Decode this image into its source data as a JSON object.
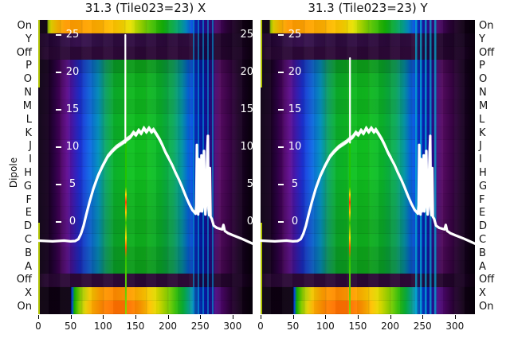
{
  "titles": {
    "left": "31.3 (Tile023=23) X",
    "right": "31.3 (Tile023=23) Y"
  },
  "ylabel": "Dipole",
  "rows": [
    {
      "label": "On",
      "type": "on_top",
      "b": 1
    },
    {
      "label": "Y",
      "type": "y_row",
      "b": 1
    },
    {
      "label": "Off",
      "type": "off_row",
      "b": 1
    },
    {
      "label": "P",
      "type": "main",
      "b": 0.84
    },
    {
      "label": "O",
      "type": "main",
      "b": 0.95
    },
    {
      "label": "N",
      "type": "main",
      "b": 1.0
    },
    {
      "label": "M",
      "type": "main",
      "b": 0.96
    },
    {
      "label": "L",
      "type": "main",
      "b": 1.03
    },
    {
      "label": "K",
      "type": "main",
      "b": 1.0
    },
    {
      "label": "J",
      "type": "main",
      "b": 1.06
    },
    {
      "label": "I",
      "type": "main",
      "b": 1.04
    },
    {
      "label": "H",
      "type": "main",
      "b": 1.06
    },
    {
      "label": "G",
      "type": "main",
      "b": 1.01
    },
    {
      "label": "F",
      "type": "main",
      "b": 0.98
    },
    {
      "label": "E",
      "type": "main",
      "b": 0.96
    },
    {
      "label": "D",
      "type": "main",
      "b": 0.92
    },
    {
      "label": "C",
      "type": "main",
      "b": 0.95
    },
    {
      "label": "B",
      "type": "main",
      "b": 0.88
    },
    {
      "label": "A",
      "type": "main",
      "b": 0.85
    },
    {
      "label": "Off",
      "type": "off_row",
      "b": 1
    },
    {
      "label": "X",
      "type": "x_row",
      "b": 1
    },
    {
      "label": "On",
      "type": "on_bottom",
      "b": 1
    }
  ],
  "chart_data": {
    "type": "heatmap",
    "description": "Dipole power waterfall (rows = dipoles/states, x = frequency channel) with white median bandpass line overlaid",
    "x_ticks": [
      0,
      50,
      100,
      150,
      200,
      250,
      300
    ],
    "x_range": [
      0,
      331
    ],
    "y_ticks": [
      25,
      20,
      15,
      10,
      5,
      0
    ],
    "panels": [
      {
        "title": "31.3 (Tile023=23) X",
        "pol": "X",
        "spike_x": 134.5,
        "spike_top": 25.0,
        "rfi_x": 135,
        "streak": "x_pol",
        "mid_labels": true
      },
      {
        "title": "31.3 (Tile023=23) Y",
        "pol": "Y",
        "spike_x": 138.0,
        "spike_top": 21.9,
        "rfi_x": 138,
        "streak": "y_pol",
        "mid_labels": false
      }
    ],
    "bandpass_line": [
      [
        0,
        -2.5
      ],
      [
        22,
        -2.6
      ],
      [
        40,
        -2.5
      ],
      [
        50,
        -2.6
      ],
      [
        57,
        -2.55
      ],
      [
        62,
        -2.3
      ],
      [
        66,
        -1.6
      ],
      [
        70,
        -0.5
      ],
      [
        74,
        0.9
      ],
      [
        79,
        2.6
      ],
      [
        85,
        4.4
      ],
      [
        92,
        6.1
      ],
      [
        99,
        7.4
      ],
      [
        107,
        8.7
      ],
      [
        114,
        9.4
      ],
      [
        121,
        10.0
      ],
      [
        128,
        10.4
      ],
      [
        133,
        10.7
      ],
      [
        137,
        11.0
      ],
      [
        142,
        11.3
      ],
      [
        147,
        11.9
      ],
      [
        151,
        11.6
      ],
      [
        155,
        12.2
      ],
      [
        159,
        11.8
      ],
      [
        163,
        12.5
      ],
      [
        167,
        12.0
      ],
      [
        171,
        12.5
      ],
      [
        175,
        12.0
      ],
      [
        178,
        12.3
      ],
      [
        181,
        11.9
      ],
      [
        184,
        11.5
      ],
      [
        188,
        10.9
      ],
      [
        192,
        10.2
      ],
      [
        197,
        9.2
      ],
      [
        202,
        8.4
      ],
      [
        207,
        7.6
      ],
      [
        212,
        6.6
      ],
      [
        217,
        5.7
      ],
      [
        222,
        4.7
      ],
      [
        228,
        3.4
      ],
      [
        233,
        2.4
      ],
      [
        238,
        1.6
      ],
      [
        242,
        1.2
      ],
      [
        243,
        1.1
      ],
      [
        244,
        2.2
      ],
      [
        245,
        10.3
      ],
      [
        246,
        2.8
      ],
      [
        247,
        1.0
      ],
      [
        248,
        8.4
      ],
      [
        249,
        1.4
      ],
      [
        250,
        2.3
      ],
      [
        252,
        8.9
      ],
      [
        253,
        1.4
      ],
      [
        254,
        2.1
      ],
      [
        256,
        9.5
      ],
      [
        257,
        3.8
      ],
      [
        258,
        1.0
      ],
      [
        259,
        2.2
      ],
      [
        261,
        9.2
      ],
      [
        262,
        11.5
      ],
      [
        263,
        1.8
      ],
      [
        264,
        0.9
      ],
      [
        265,
        7.2
      ],
      [
        266,
        0.7
      ],
      [
        268,
        0.4
      ],
      [
        271,
        -0.5
      ],
      [
        276,
        -0.8
      ],
      [
        284,
        -1.0
      ],
      [
        286,
        -0.4
      ],
      [
        288,
        -1.2
      ],
      [
        293,
        -1.5
      ],
      [
        301,
        -1.8
      ],
      [
        313,
        -2.2
      ],
      [
        331,
        -2.9
      ]
    ],
    "spike_base_value": 10.6
  },
  "colors": {
    "background": "#ffffff",
    "curve": "#ffffff",
    "tick_text": "#ffffff",
    "axis_text": "#111111",
    "edge_line": "#c3d900",
    "row_gradients": {
      "main": [
        [
          0,
          "#0d0014"
        ],
        [
          0.045,
          "#16001f"
        ],
        [
          0.075,
          "#2a0140"
        ],
        [
          0.105,
          "#47015e"
        ],
        [
          0.135,
          "#5c0b8a"
        ],
        [
          0.165,
          "#3d1bb0"
        ],
        [
          0.2,
          "#1632d2"
        ],
        [
          0.24,
          "#0c62d8"
        ],
        [
          0.28,
          "#0793c0"
        ],
        [
          0.315,
          "#09a060"
        ],
        [
          0.355,
          "#0aae2a"
        ],
        [
          0.42,
          "#0db61e"
        ],
        [
          0.5,
          "#10ba1e"
        ],
        [
          0.57,
          "#0ab02a"
        ],
        [
          0.63,
          "#08a356"
        ],
        [
          0.67,
          "#0695a4"
        ],
        [
          0.7,
          "#0563d8"
        ],
        [
          0.735,
          "#043ae2"
        ],
        [
          0.765,
          "#0b26cc"
        ],
        [
          0.79,
          "#2813ae"
        ],
        [
          0.815,
          "#49077c"
        ],
        [
          0.85,
          "#540a60"
        ],
        [
          0.89,
          "#3b0348"
        ],
        [
          0.935,
          "#1c0126"
        ],
        [
          1,
          "#06000a"
        ]
      ],
      "on_top": [
        [
          0,
          "#0b000f"
        ],
        [
          0.04,
          "#0b000f"
        ],
        [
          0.048,
          "#9ec800"
        ],
        [
          0.06,
          "#e4d200"
        ],
        [
          0.09,
          "#f7b300"
        ],
        [
          0.13,
          "#ff9a00"
        ],
        [
          0.22,
          "#ffa300"
        ],
        [
          0.3,
          "#ffb100"
        ],
        [
          0.37,
          "#fdc800"
        ],
        [
          0.43,
          "#e8e100"
        ],
        [
          0.47,
          "#a8d900"
        ],
        [
          0.52,
          "#53c300"
        ],
        [
          0.58,
          "#14b106"
        ],
        [
          0.63,
          "#06a748"
        ],
        [
          0.665,
          "#05a18e"
        ],
        [
          0.69,
          "#0489c4"
        ],
        [
          0.715,
          "#0453e2"
        ],
        [
          0.74,
          "#0b2ed2"
        ],
        [
          0.765,
          "#2b17b2"
        ],
        [
          0.79,
          "#4f0a92"
        ],
        [
          0.83,
          "#4c0668"
        ],
        [
          0.88,
          "#2b0238"
        ],
        [
          0.94,
          "#120016"
        ],
        [
          1,
          "#050008"
        ]
      ],
      "on_bottom": [
        [
          0,
          "#0b000f"
        ],
        [
          0.15,
          "#0c0011"
        ],
        [
          0.158,
          "#0448f0"
        ],
        [
          0.168,
          "#12b400"
        ],
        [
          0.19,
          "#8ad400"
        ],
        [
          0.22,
          "#e6cf00"
        ],
        [
          0.25,
          "#ffab00"
        ],
        [
          0.3,
          "#ff8400"
        ],
        [
          0.36,
          "#ff6f00"
        ],
        [
          0.42,
          "#ff7200"
        ],
        [
          0.47,
          "#ff9100"
        ],
        [
          0.52,
          "#ffc300"
        ],
        [
          0.56,
          "#dfe000"
        ],
        [
          0.6,
          "#8fd200"
        ],
        [
          0.64,
          "#35bd04"
        ],
        [
          0.675,
          "#08b036"
        ],
        [
          0.7,
          "#07a684"
        ],
        [
          0.725,
          "#0590c2"
        ],
        [
          0.75,
          "#0455e4"
        ],
        [
          0.775,
          "#0b2cd0"
        ],
        [
          0.8,
          "#2b14ae"
        ],
        [
          0.825,
          "#500a88"
        ],
        [
          0.86,
          "#470560"
        ],
        [
          0.9,
          "#280134"
        ],
        [
          0.95,
          "#100014"
        ],
        [
          1,
          "#050008"
        ]
      ],
      "x_row": [
        [
          0,
          "#0b000f"
        ],
        [
          0.15,
          "#0c0011"
        ],
        [
          0.158,
          "#0448f0"
        ],
        [
          0.17,
          "#16b400"
        ],
        [
          0.2,
          "#9ad000"
        ],
        [
          0.24,
          "#f2c800"
        ],
        [
          0.29,
          "#ff9c00"
        ],
        [
          0.36,
          "#ff8a00"
        ],
        [
          0.44,
          "#ffa200"
        ],
        [
          0.5,
          "#fdc400"
        ],
        [
          0.55,
          "#e0dc00"
        ],
        [
          0.6,
          "#90d200"
        ],
        [
          0.645,
          "#2fba06"
        ],
        [
          0.68,
          "#08ac42"
        ],
        [
          0.705,
          "#06a090"
        ],
        [
          0.73,
          "#0480cc"
        ],
        [
          0.755,
          "#0448e4"
        ],
        [
          0.78,
          "#0d28cc"
        ],
        [
          0.805,
          "#2e12a8"
        ],
        [
          0.83,
          "#4e0a80"
        ],
        [
          0.865,
          "#42055a"
        ],
        [
          0.905,
          "#240130"
        ],
        [
          0.95,
          "#0f0013"
        ],
        [
          1,
          "#050008"
        ]
      ],
      "y_row": [
        [
          0,
          "#180020"
        ],
        [
          0.05,
          "#200430"
        ],
        [
          0.1,
          "#2c0a3e"
        ],
        [
          0.18,
          "#381150"
        ],
        [
          0.25,
          "#321048"
        ],
        [
          0.35,
          "#2c0a3c"
        ],
        [
          0.45,
          "#300c42"
        ],
        [
          0.6,
          "#2a0838"
        ],
        [
          0.72,
          "#300c40"
        ],
        [
          0.8,
          "#280734"
        ],
        [
          0.9,
          "#1c0326"
        ],
        [
          1,
          "#0c0010"
        ]
      ],
      "off_row": [
        [
          0,
          "#140018"
        ],
        [
          0.03,
          "#22052c"
        ],
        [
          0.1,
          "#2a0836"
        ],
        [
          0.3,
          "#2e0938"
        ],
        [
          0.5,
          "#2a0734"
        ],
        [
          0.7,
          "#2e0938"
        ],
        [
          0.85,
          "#24052e"
        ],
        [
          0.95,
          "#180120"
        ],
        [
          1,
          "#0b000e"
        ]
      ]
    },
    "streaks": {
      "x_pol": {
        "shade": "rgba(0,0,100,0.40)",
        "line": "rgba(0,185,230,0.50)",
        "lw": 2,
        "gap": 4
      },
      "y_pol": {
        "shade": "rgba(0,10,110,0.30)",
        "line": "rgba(0,205,225,0.60)",
        "lw": 2.5,
        "gap": 3.5
      }
    },
    "rfi_line": [
      [
        0,
        "#22c300"
      ],
      [
        0.5,
        "#22c300"
      ],
      [
        0.53,
        "#ffd400"
      ],
      [
        0.56,
        "#ff3c00"
      ],
      [
        0.6,
        "#ffc800"
      ],
      [
        0.64,
        "#28c000"
      ],
      [
        0.7,
        "#ffd800"
      ],
      [
        0.74,
        "#ff5200"
      ],
      [
        0.78,
        "#2ec300"
      ],
      [
        1,
        "#8fd400"
      ]
    ]
  }
}
